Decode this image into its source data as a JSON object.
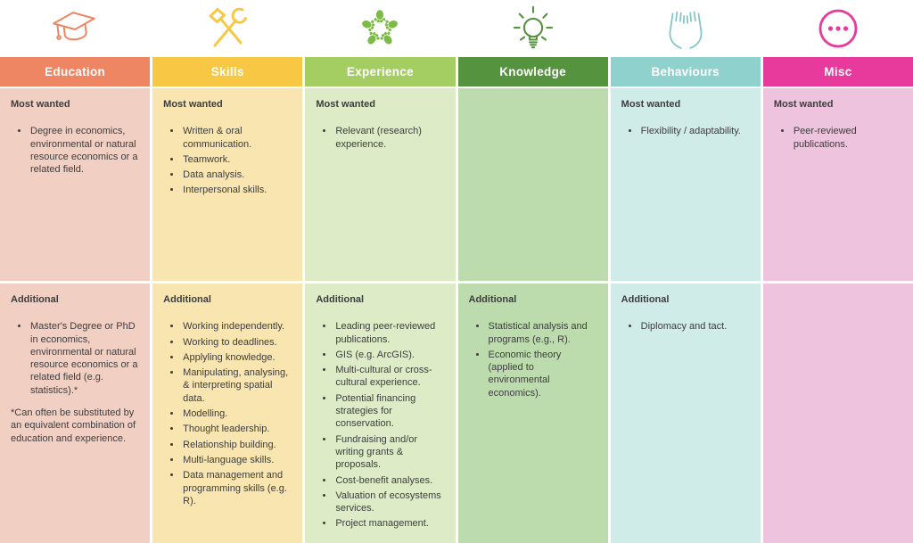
{
  "table": {
    "columns": [
      {
        "title": "Education",
        "icon": "graduation-cap-icon",
        "colors": {
          "header": "#EE8663",
          "body": "#F2CFC3",
          "icon": "#EE8663"
        },
        "most_wanted": {
          "label": "Most wanted",
          "items": [
            "Degree in economics, environmental or natural resource economics or a related field."
          ]
        },
        "additional": {
          "label": "Additional",
          "items": [
            "Master's Degree or PhD in economics, environmental or natural resource economics or a related field (e.g. statistics).*"
          ],
          "note": "*Can often be substituted by an equivalent combination of education and experience."
        }
      },
      {
        "title": "Skills",
        "icon": "hammer-wrench-icon",
        "colors": {
          "header": "#F8C845",
          "body": "#F8E5B0",
          "icon": "#F8C845"
        },
        "most_wanted": {
          "label": "Most wanted",
          "items": [
            "Written & oral communication.",
            "Teamwork.",
            "Data analysis.",
            "Interpersonal skills."
          ]
        },
        "additional": {
          "label": "Additional",
          "items": [
            "Working independently.",
            "Working to deadlines.",
            "Applyling knowledge.",
            "Manipulating, analysing, & interpreting spatial data.",
            "Modelling.",
            "Thought leadership.",
            "Relationship building.",
            "Multi-language skills.",
            "Data management and programming skills (e.g. R)."
          ]
        }
      },
      {
        "title": "Experience",
        "icon": "hands-in-icon",
        "colors": {
          "header": "#A5CE62",
          "body": "#DDEBC6",
          "icon": "#7CBB45"
        },
        "most_wanted": {
          "label": "Most wanted",
          "items": [
            "Relevant (research) experience."
          ]
        },
        "additional": {
          "label": "Additional",
          "items": [
            "Leading peer-reviewed publications.",
            "GIS (e.g. ArcGIS).",
            "Multi-cultural or cross-cultural experience.",
            "Potential financing strategies for conservation.",
            "Fundraising and/or writing grants & proposals.",
            "Cost-benefit analyses.",
            "Valuation of ecosystems services.",
            "Project management."
          ]
        }
      },
      {
        "title": "Knowledge",
        "icon": "lightbulb-icon",
        "colors": {
          "header": "#55933F",
          "body": "#BCDCAE",
          "icon": "#55933F"
        },
        "most_wanted": {
          "label": "",
          "items": []
        },
        "additional": {
          "label": "Additional",
          "items": [
            "Statistical analysis and programs (e.g., R).",
            "Economic theory (applied to environmental economics)."
          ]
        }
      },
      {
        "title": "Behaviours",
        "icon": "open-hands-icon",
        "colors": {
          "header": "#8FD1CD",
          "body": "#CFECE9",
          "icon": "#7FC6C9"
        },
        "most_wanted": {
          "label": "Most wanted",
          "items": [
            "Flexibility / adaptability."
          ]
        },
        "additional": {
          "label": "Additional",
          "items": [
            "Diplomacy and tact."
          ]
        }
      },
      {
        "title": "Misc",
        "icon": "ellipsis-circle-icon",
        "colors": {
          "header": "#E8399C",
          "body": "#EDC3DE",
          "icon": "#E8399C"
        },
        "most_wanted": {
          "label": "Most wanted",
          "items": [
            "Peer-reviewed publications."
          ]
        },
        "additional": {
          "label": "",
          "items": []
        }
      }
    ]
  }
}
